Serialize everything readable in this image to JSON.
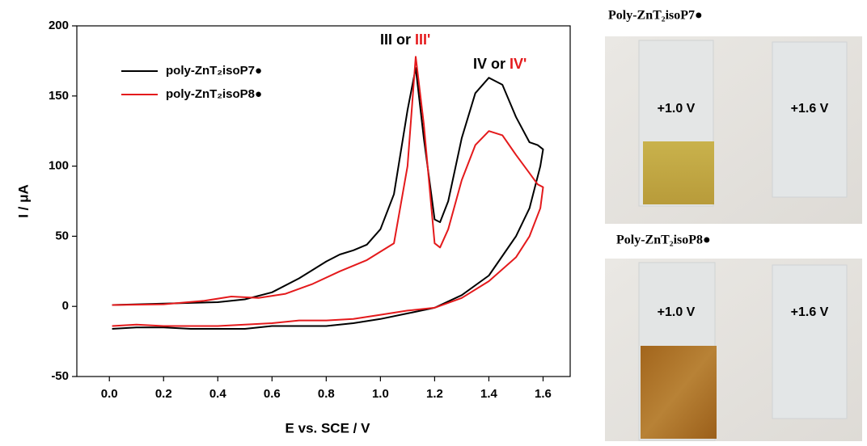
{
  "chart_data": {
    "type": "line",
    "x_label": "E vs. SCE / V",
    "y_label": "I / μA",
    "xlim": [
      -0.12,
      1.7
    ],
    "ylim": [
      -50,
      200
    ],
    "xticks": [
      {
        "value": 0,
        "label": "0.0"
      },
      0.2,
      0.4,
      0.6,
      0.8,
      {
        "value": 1,
        "label": "1.0"
      },
      1.2,
      1.4,
      1.6
    ],
    "yticks": [
      -50,
      0,
      50,
      100,
      150,
      200
    ],
    "grid": false,
    "legend": "upper left",
    "annotations": [
      {
        "parts": [
          "III",
          "or",
          "III'"
        ]
      },
      {
        "parts": [
          "IV",
          "or",
          "IV'"
        ]
      }
    ],
    "series": [
      {
        "name": "poly-ZnT₂isoP7●",
        "color": "#000000",
        "x": [
          0.01,
          0.2,
          0.4,
          0.5,
          0.6,
          0.7,
          0.8,
          0.85,
          0.9,
          0.95,
          1.0,
          1.05,
          1.1,
          1.13,
          1.16,
          1.2,
          1.22,
          1.25,
          1.3,
          1.35,
          1.4,
          1.45,
          1.5,
          1.55,
          1.58,
          1.6,
          1.59,
          1.55,
          1.5,
          1.4,
          1.3,
          1.2,
          1.1,
          1.0,
          0.9,
          0.8,
          0.7,
          0.6,
          0.5,
          0.4,
          0.3,
          0.2,
          0.1,
          0.01
        ],
        "values": [
          1,
          2,
          3,
          5,
          10,
          20,
          32,
          37,
          40,
          44,
          55,
          80,
          140,
          170,
          120,
          62,
          60,
          75,
          120,
          152,
          163,
          158,
          135,
          117,
          115,
          112,
          100,
          70,
          50,
          22,
          8,
          -1,
          -5,
          -9,
          -12,
          -14,
          -14,
          -14,
          -16,
          -16,
          -16,
          -15,
          -15,
          -16
        ]
      },
      {
        "name": "poly-ZnT₂isoP8●",
        "color": "#e41a1c",
        "x": [
          0.01,
          0.2,
          0.35,
          0.45,
          0.55,
          0.65,
          0.75,
          0.85,
          0.95,
          1.05,
          1.1,
          1.13,
          1.16,
          1.2,
          1.22,
          1.25,
          1.3,
          1.35,
          1.4,
          1.45,
          1.5,
          1.55,
          1.58,
          1.6,
          1.59,
          1.55,
          1.5,
          1.4,
          1.3,
          1.2,
          1.1,
          1.0,
          0.9,
          0.8,
          0.7,
          0.6,
          0.5,
          0.4,
          0.3,
          0.2,
          0.1,
          0.01
        ],
        "values": [
          1,
          1.5,
          4,
          7,
          6,
          9,
          16,
          25,
          33,
          45,
          100,
          178,
          130,
          45,
          42,
          55,
          90,
          115,
          125,
          122,
          108,
          95,
          87,
          85,
          70,
          50,
          35,
          18,
          6,
          -1,
          -3,
          -6,
          -9,
          -10,
          -10,
          -12,
          -13,
          -14,
          -14,
          -14,
          -13,
          -14
        ]
      }
    ]
  },
  "photos": [
    {
      "title": "Poly-ZnT₂isoP7●",
      "labels": [
        "+1.0 V",
        "+1.6 V"
      ]
    },
    {
      "title": "Poly-ZnT₂isoP8●",
      "labels": [
        "+1.0 V",
        "+1.6 V"
      ]
    }
  ]
}
